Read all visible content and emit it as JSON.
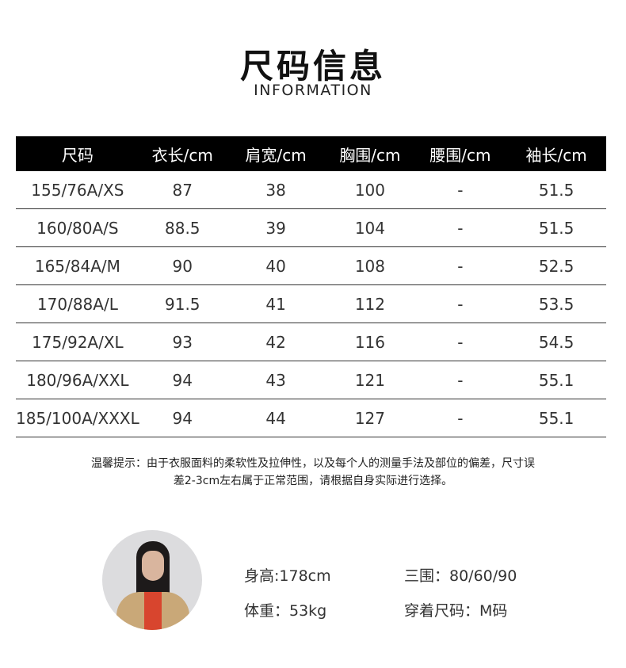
{
  "header": {
    "title": "尺码信息",
    "subtitle": "INFORMATION"
  },
  "table": {
    "columns": [
      "尺码",
      "衣长/cm",
      "肩宽/cm",
      "胸围/cm",
      "腰围/cm",
      "袖长/cm"
    ],
    "rows": [
      [
        "155/76A/XS",
        "87",
        "38",
        "100",
        "-",
        "51.5"
      ],
      [
        "160/80A/S",
        "88.5",
        "39",
        "104",
        "-",
        "51.5"
      ],
      [
        "165/84A/M",
        "90",
        "40",
        "108",
        "-",
        "52.5"
      ],
      [
        "170/88A/L",
        "91.5",
        "41",
        "112",
        "-",
        "53.5"
      ],
      [
        "175/92A/XL",
        "93",
        "42",
        "116",
        "-",
        "54.5"
      ],
      [
        "180/96A/XXL",
        "94",
        "43",
        "121",
        "-",
        "55.1"
      ],
      [
        "185/100A/XXXL",
        "94",
        "44",
        "127",
        "-",
        "55.1"
      ]
    ]
  },
  "note": {
    "line1": "温馨提示：由于衣服面料的柔软性及拉伸性，以及每个人的测量手法及部位的偏差，尺寸误",
    "line2": "差2-3cm左右属于正常范围，请根据自身实际进行选择。"
  },
  "model": {
    "height": "身高:178cm",
    "measurements": "三围：80/60/90",
    "weight": "体重：53kg",
    "size_worn": "穿着尺码：M码"
  }
}
